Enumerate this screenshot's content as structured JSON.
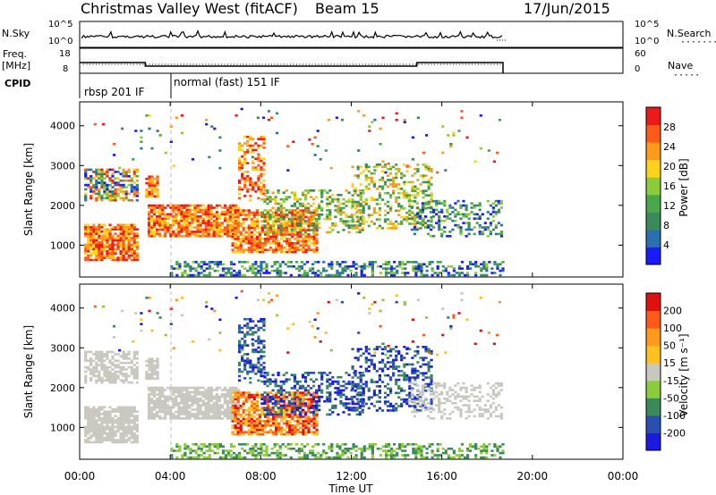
{
  "header": {
    "title": "Christmas Valley West (fitACF)",
    "beam": "Beam 15",
    "date": "17/Jun/2015"
  },
  "left_labels": {
    "nsky": "N.Sky",
    "freq": "Freq.",
    "freq_unit": "[MHz]",
    "cpid": "CPID"
  },
  "right_labels": {
    "nsearch": "N.Search",
    "nave": "Nave"
  },
  "colors": {
    "power": [
      "#1a1aff",
      "#2b6fb0",
      "#3b8a5a",
      "#4aa74a",
      "#8ccc3a",
      "#ffd21a",
      "#ff9a1a",
      "#ff5a1a",
      "#ee1a1a"
    ],
    "velocity": [
      "#e01010",
      "#ff5a1a",
      "#ff9a1a",
      "#ffc020",
      "#c8c8c0",
      "#8ccc3a",
      "#3b8a5a",
      "#2b4fb0",
      "#1a1ae0"
    ],
    "velocity_grey": "#c8c8c0"
  },
  "chart_data": [
    {
      "type": "line",
      "name": "noise-panel",
      "y_left_ticks": [
        "10^5",
        "10^0"
      ],
      "y_right_ticks": [
        "10^5",
        "10^0"
      ],
      "xlim_hours": [
        0,
        24
      ],
      "data_end_hours": 18.7
    },
    {
      "type": "line",
      "name": "freq-nave-panel",
      "left_ticks": [
        "18",
        "8"
      ],
      "right_ticks": [
        "60",
        "0"
      ],
      "freq_steps": [
        {
          "from": 0,
          "to": 2.9,
          "value": 12
        },
        {
          "from": 2.9,
          "to": 14.9,
          "value": 10
        },
        {
          "from": 14.9,
          "to": 18.7,
          "value": 12
        }
      ]
    },
    {
      "type": "table",
      "name": "cpid",
      "segments": [
        {
          "from": 0,
          "to": 3.8,
          "label": "rbsp 201 IF"
        },
        {
          "from": 3.8,
          "to": 18.7,
          "label": "normal (fast) 151 IF"
        }
      ]
    },
    {
      "type": "heatmap",
      "name": "power",
      "ylabel": "Slant Range [km]",
      "y_ticks": [
        1000,
        2000,
        3000,
        4000
      ],
      "ylim": [
        200,
        4600
      ],
      "xlim_hours": [
        0,
        24
      ],
      "colorbar_label": "Power [dB]",
      "colorbar_ticks": [
        4,
        8,
        12,
        16,
        20,
        24,
        28
      ]
    },
    {
      "type": "heatmap",
      "name": "velocity",
      "ylabel": "Slant Range [km]",
      "y_ticks": [
        1000,
        2000,
        3000,
        4000
      ],
      "ylim": [
        200,
        4600
      ],
      "xlim_hours": [
        0,
        24
      ],
      "colorbar_label": "Velocity [m s⁻¹]",
      "colorbar_ticks": [
        200,
        100,
        50,
        15,
        -15,
        -50,
        -100,
        -200
      ],
      "x_ticks": [
        "00:00",
        "04:00",
        "08:00",
        "12:00",
        "16:00",
        "20:00",
        "00:00"
      ],
      "xlabel": "Time UT"
    }
  ]
}
